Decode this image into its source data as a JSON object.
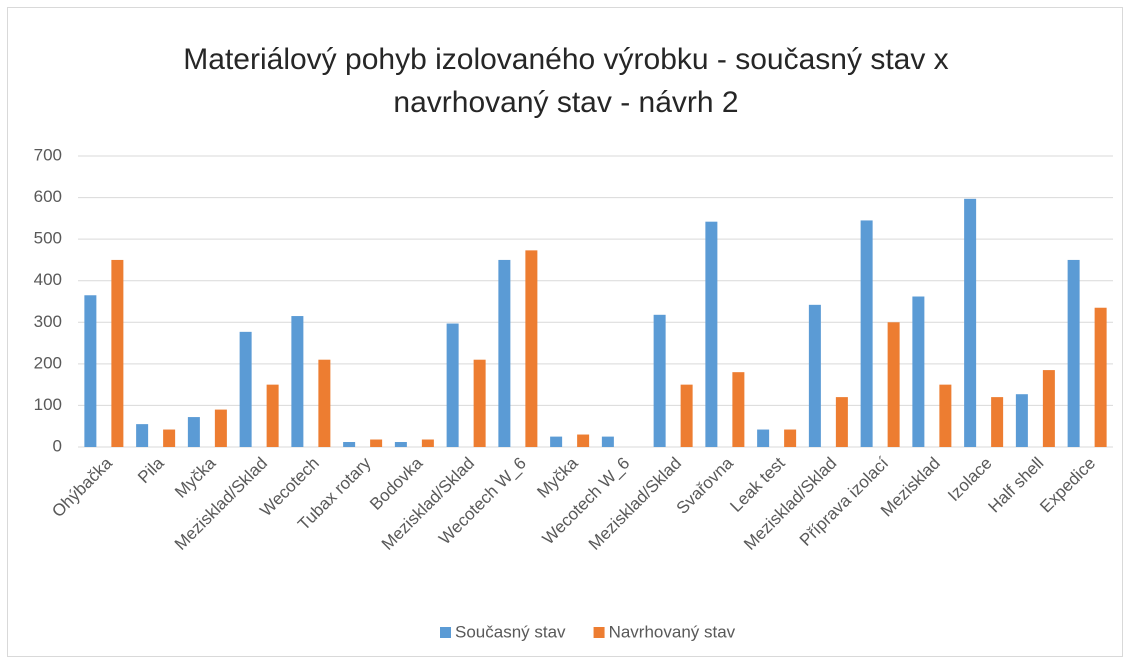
{
  "chart_data": {
    "type": "bar",
    "title": "Materiálový pohyb izolovaného výrobku - současný stav x navrhovaný stav - návrh 2",
    "categories": [
      "Ohýbačka",
      "Pila",
      "Myčka",
      "Mezisklad/Sklad",
      "Wecotech",
      "Tubax rotary",
      "Bodovka",
      "Mezisklad/Sklad",
      "Wecotech W_6",
      "Myčka",
      "Wecotech W_6",
      "Mezisklad/Sklad",
      "Svařovna",
      "Leak test",
      "Mezisklad/Sklad",
      "Příprava izolací",
      "Mezisklad",
      "Izolace",
      "Half shell",
      "Expedice"
    ],
    "series": [
      {
        "name": "Současný stav",
        "color": "#5b9bd5",
        "values": [
          365,
          55,
          72,
          277,
          315,
          12,
          12,
          297,
          450,
          25,
          25,
          318,
          542,
          42,
          342,
          545,
          362,
          597,
          127,
          450
        ]
      },
      {
        "name": "Navrhovaný stav",
        "color": "#ed7d31",
        "values": [
          450,
          42,
          90,
          150,
          210,
          18,
          18,
          210,
          473,
          30,
          null,
          150,
          180,
          42,
          120,
          300,
          150,
          120,
          185,
          335
        ]
      }
    ],
    "ylim": [
      0,
      700
    ],
    "yticks": [
      0,
      100,
      200,
      300,
      400,
      500,
      600,
      700
    ],
    "grid": true,
    "legend": "bottom"
  }
}
